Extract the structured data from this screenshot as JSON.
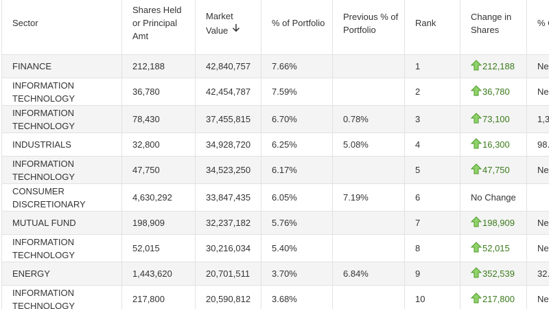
{
  "colors": {
    "change_positive": "#3a7a1a",
    "arrow_fill": "#8fd26a",
    "row_alt": "#f4f4f4",
    "border": "#e2e2e2"
  },
  "header": {
    "sector": "Sector",
    "shares": "Shares Held or Principal Amt",
    "market_value": "Market Value",
    "sort_icon": "arrow-down-icon",
    "pct_portfolio": "% of Portfolio",
    "prev_pct": "Previous % of Portfolio",
    "rank": "Rank",
    "change": "Change in Shares",
    "pct_change": "% Ch"
  },
  "rows": [
    {
      "sector": "FINANCE",
      "shares": "212,188",
      "value": "42,840,757",
      "pct": "7.66%",
      "prev": "",
      "rank": "1",
      "change": "212,188",
      "up": true,
      "pct_change": "Ne"
    },
    {
      "sector": "INFORMATION TECHNOLOGY",
      "shares": "36,780",
      "value": "42,454,787",
      "pct": "7.59%",
      "prev": "",
      "rank": "2",
      "change": "36,780",
      "up": true,
      "pct_change": "Ne"
    },
    {
      "sector": "INFORMATION TECHNOLOGY",
      "shares": "78,430",
      "value": "37,455,815",
      "pct": "6.70%",
      "prev": "0.78%",
      "rank": "3",
      "change": "73,100",
      "up": true,
      "pct_change": "1,3"
    },
    {
      "sector": "INDUSTRIALS",
      "shares": "32,800",
      "value": "34,928,720",
      "pct": "6.25%",
      "prev": "5.08%",
      "rank": "4",
      "change": "16,300",
      "up": true,
      "pct_change": "98."
    },
    {
      "sector": "INFORMATION TECHNOLOGY",
      "shares": "47,750",
      "value": "34,523,250",
      "pct": "6.17%",
      "prev": "",
      "rank": "5",
      "change": "47,750",
      "up": true,
      "pct_change": "Ne"
    },
    {
      "sector": "CONSUMER DISCRETIONARY",
      "shares": "4,630,292",
      "value": "33,847,435",
      "pct": "6.05%",
      "prev": "7.19%",
      "rank": "6",
      "change": "No Change",
      "up": false,
      "pct_change": ""
    },
    {
      "sector": "MUTUAL FUND",
      "shares": "198,909",
      "value": "32,237,182",
      "pct": "5.76%",
      "prev": "",
      "rank": "7",
      "change": "198,909",
      "up": true,
      "pct_change": "Ne"
    },
    {
      "sector": "INFORMATION TECHNOLOGY",
      "shares": "52,015",
      "value": "30,216,034",
      "pct": "5.40%",
      "prev": "",
      "rank": "8",
      "change": "52,015",
      "up": true,
      "pct_change": "Ne"
    },
    {
      "sector": "ENERGY",
      "shares": "1,443,620",
      "value": "20,701,511",
      "pct": "3.70%",
      "prev": "6.84%",
      "rank": "9",
      "change": "352,539",
      "up": true,
      "pct_change": "32."
    },
    {
      "sector": "INFORMATION TECHNOLOGY",
      "shares": "217,800",
      "value": "20,590,812",
      "pct": "3.68%",
      "prev": "",
      "rank": "10",
      "change": "217,800",
      "up": true,
      "pct_change": "Ne"
    }
  ]
}
